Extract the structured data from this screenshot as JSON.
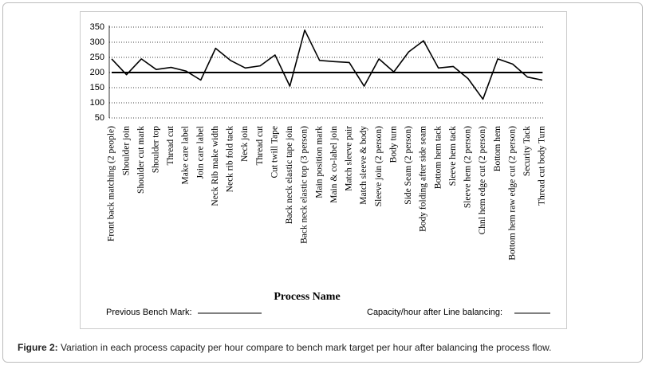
{
  "chart_data": {
    "type": "line",
    "categories": [
      "Front back matching (2 people)",
      "Shoulder join",
      "Shoulder cut mark",
      "Shoulder top",
      "Thread cut",
      "Make care label",
      "Join care label",
      "Neck Rib make width",
      "Neck rib fold tack",
      "Neck join",
      "Thread cut",
      "Cut twill Tape",
      "Back neck elastic tape join",
      "Back neck elastic top (3 person)",
      "Main position mark",
      "Main & co-label join",
      "Match sleeve pair",
      "Match sleeve & body",
      "Sleeve join (2 person)",
      "Body turn",
      "Side Seam (2 person)",
      "Body folding after side seam",
      "Bottom hem tack",
      "Sleeve hem tack",
      "Sleeve hem (2 person)",
      "Chnl hem edge cut (2 person)",
      "Bottom hem",
      "Bottom hem raw edge cut (2 person)",
      "Security Tack",
      "Thread cut body Turn"
    ],
    "series": [
      {
        "name": "Previous Bench Mark:",
        "color": "#000000",
        "values": [
          200,
          200,
          200,
          200,
          200,
          200,
          200,
          200,
          200,
          200,
          200,
          200,
          200,
          200,
          200,
          200,
          200,
          200,
          200,
          200,
          200,
          200,
          200,
          200,
          200,
          200,
          200,
          200,
          200,
          200
        ]
      },
      {
        "name": "Capacity/hour after Line balancing:",
        "color": "#000000",
        "values": [
          245,
          193,
          245,
          210,
          217,
          205,
          175,
          280,
          240,
          215,
          222,
          258,
          155,
          340,
          240,
          236,
          233,
          155,
          245,
          202,
          268,
          305,
          215,
          220,
          180,
          112,
          245,
          228,
          185,
          175
        ]
      }
    ],
    "xlabel": "Process Name",
    "ylim": [
      50,
      350
    ],
    "yticks": [
      50,
      100,
      150,
      200,
      250,
      300,
      350
    ],
    "grid": true
  },
  "caption": {
    "label": "Figure 2:",
    "text": "Variation in each process capacity per hour compare to bench mark target per hour after balancing the process flow."
  }
}
